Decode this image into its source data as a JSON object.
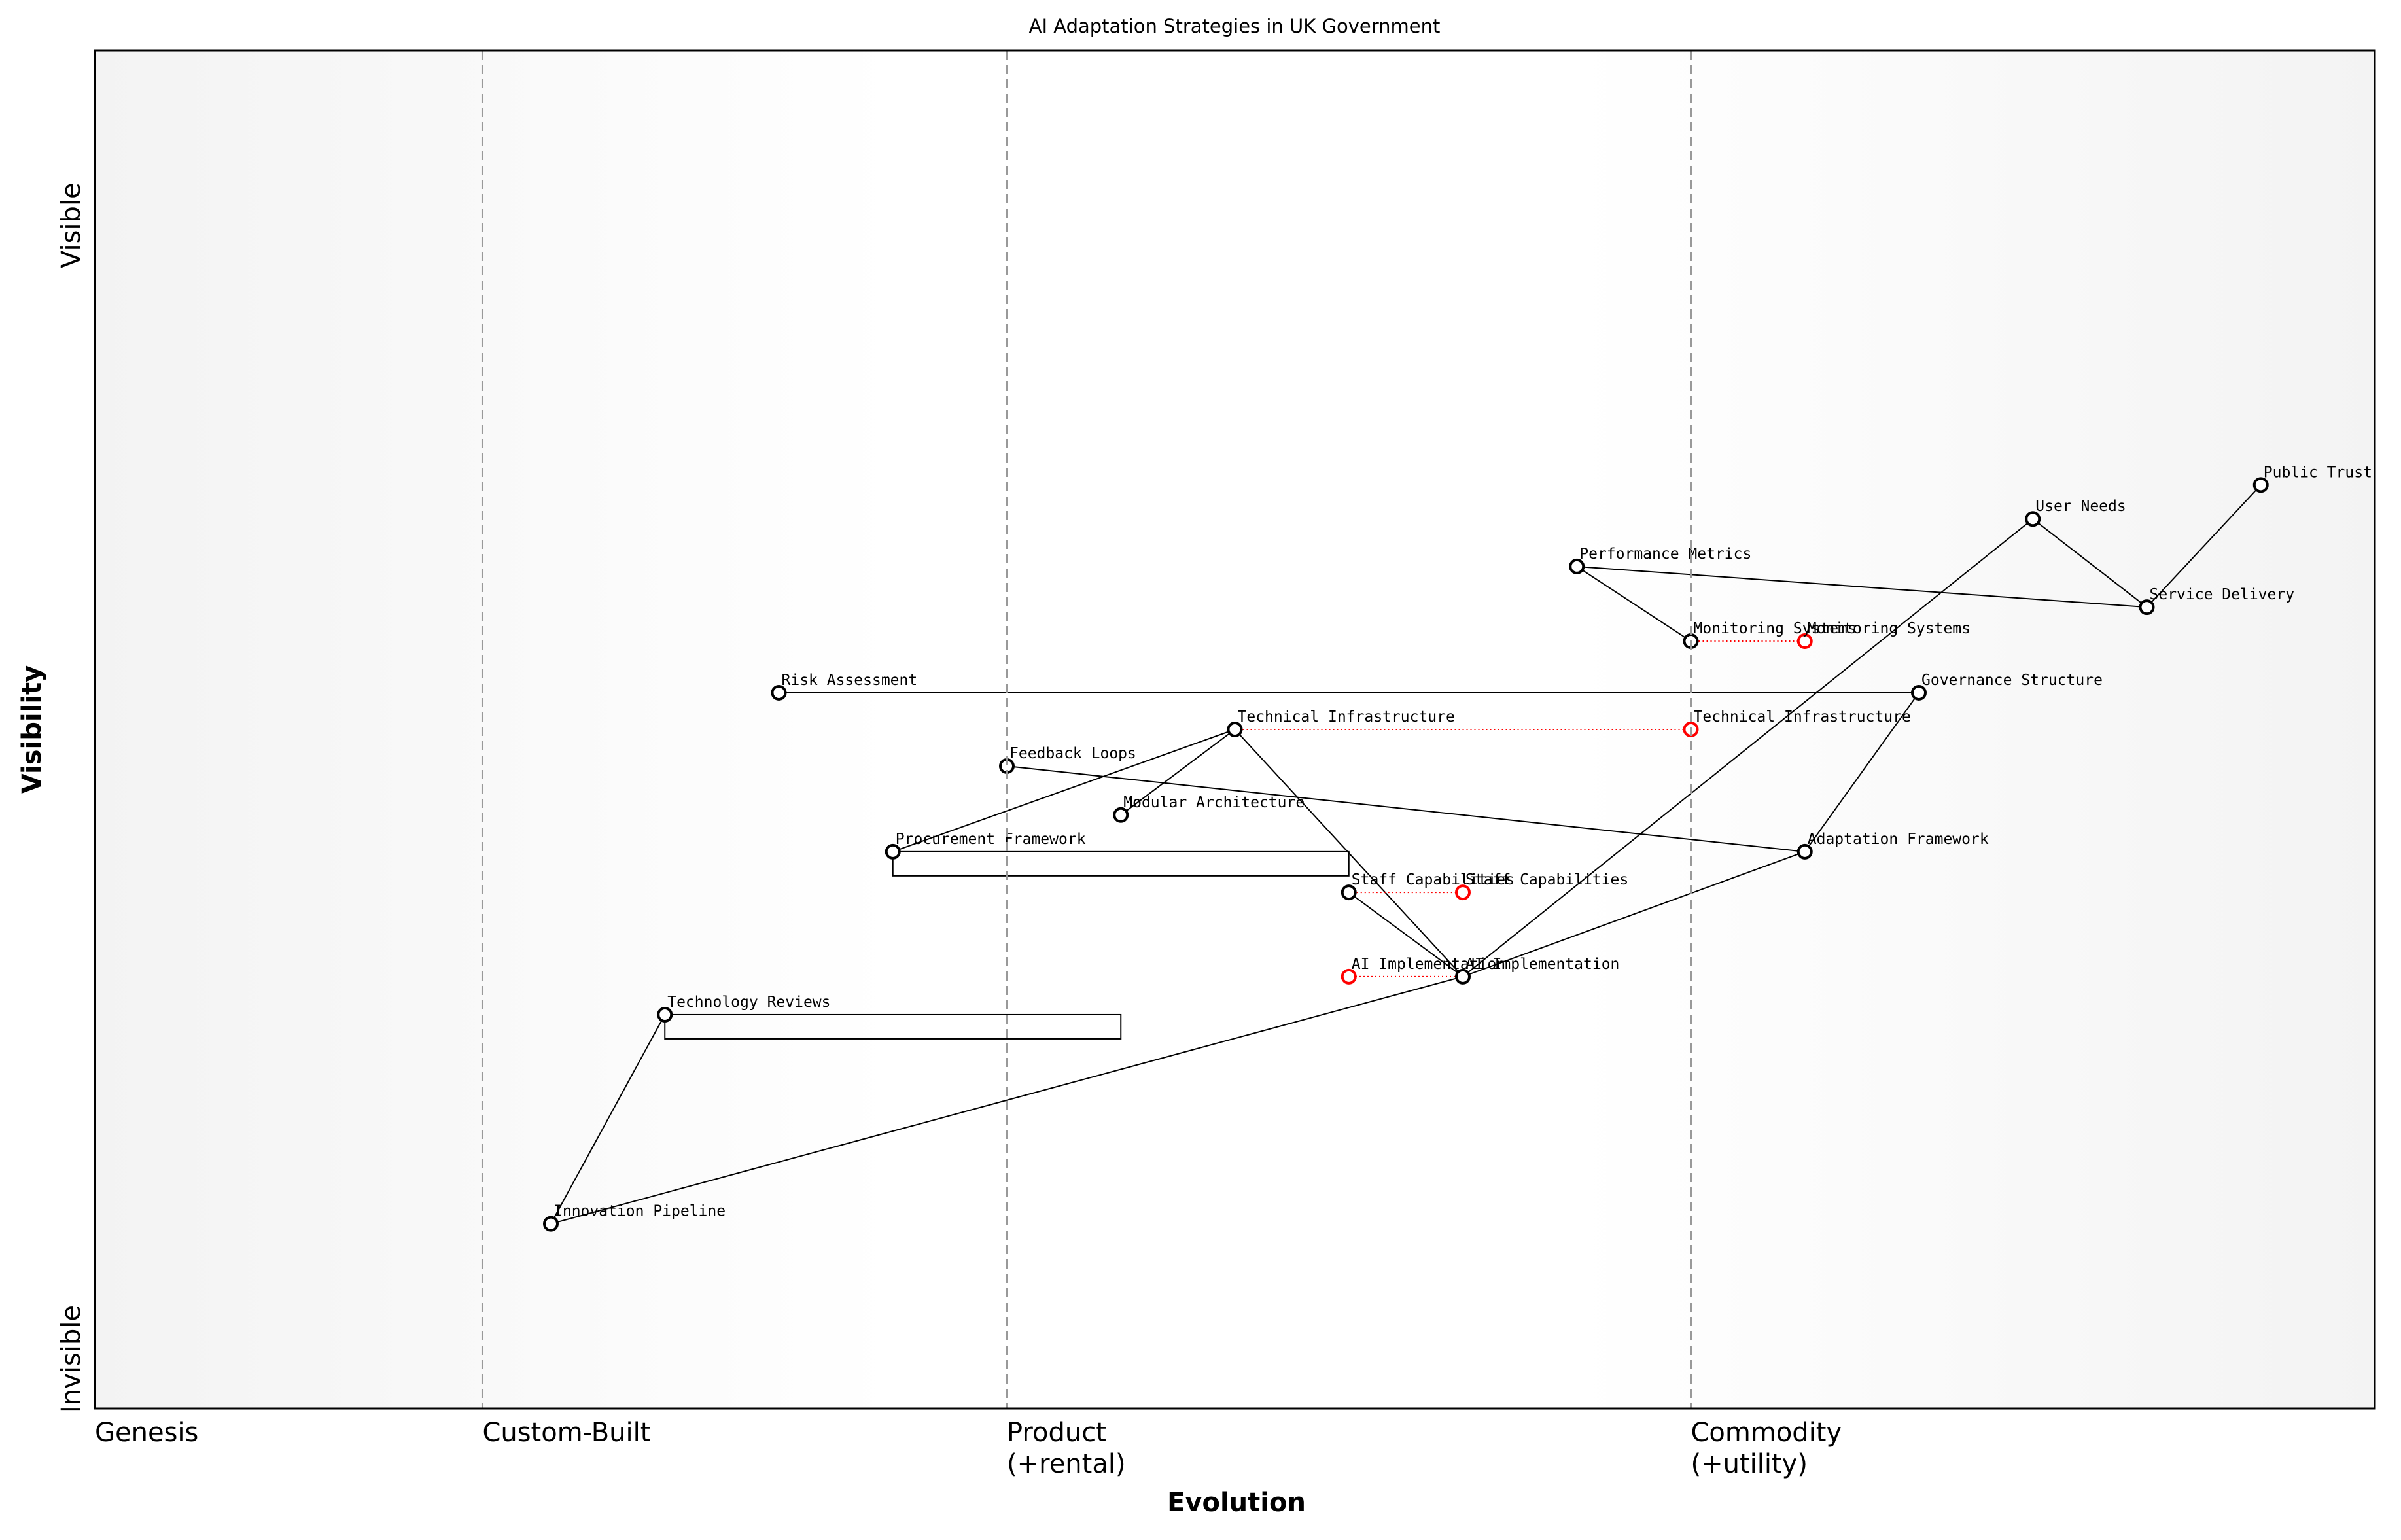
{
  "map": {
    "title": "AI Adaptation Strategies in UK Government",
    "x_axis_title": "Evolution",
    "y_axis_title": "Visibility",
    "y_top_label": "Visible",
    "y_bottom_label": "Invisible",
    "stages": [
      {
        "position": 0,
        "lines": [
          "Genesis"
        ]
      },
      {
        "position": 0.17,
        "lines": [
          "Custom-Built"
        ]
      },
      {
        "position": 0.4,
        "lines": [
          "Product",
          "(+rental)"
        ]
      },
      {
        "position": 0.7,
        "lines": [
          "Commodity",
          "(+utility)"
        ]
      }
    ],
    "components": [
      {
        "name": "Public Trust",
        "visibility": 0.68,
        "evolution": 0.95
      },
      {
        "name": "User Needs",
        "visibility": 0.655,
        "evolution": 0.85
      },
      {
        "name": "Service Delivery",
        "visibility": 0.59,
        "evolution": 0.9
      },
      {
        "name": "Performance Metrics",
        "visibility": 0.62,
        "evolution": 0.65
      },
      {
        "name": "Monitoring Systems",
        "visibility": 0.565,
        "evolution": 0.7
      },
      {
        "name": "Governance Structure",
        "visibility": 0.527,
        "evolution": 0.8
      },
      {
        "name": "Risk Assessment",
        "visibility": 0.527,
        "evolution": 0.3
      },
      {
        "name": "Technical Infrastructure",
        "visibility": 0.5,
        "evolution": 0.5
      },
      {
        "name": "Feedback Loops",
        "visibility": 0.473,
        "evolution": 0.4
      },
      {
        "name": "Modular Architecture",
        "visibility": 0.437,
        "evolution": 0.45
      },
      {
        "name": "Procurement Framework",
        "visibility": 0.41,
        "evolution": 0.35
      },
      {
        "name": "Adaptation Framework",
        "visibility": 0.41,
        "evolution": 0.75
      },
      {
        "name": "Staff Capabilities",
        "visibility": 0.38,
        "evolution": 0.55
      },
      {
        "name": "AI Implementation",
        "visibility": 0.318,
        "evolution": 0.6
      },
      {
        "name": "Technology Reviews",
        "visibility": 0.29,
        "evolution": 0.25
      },
      {
        "name": "Innovation Pipeline",
        "visibility": 0.136,
        "evolution": 0.2
      }
    ],
    "links": [
      [
        "Public Trust",
        "Service Delivery"
      ],
      [
        "User Needs",
        "Service Delivery"
      ],
      [
        "Service Delivery",
        "Performance Metrics"
      ],
      [
        "Performance Metrics",
        "Monitoring Systems"
      ],
      [
        "User Needs",
        "AI Implementation"
      ],
      [
        "Governance Structure",
        "Risk Assessment"
      ],
      [
        "Governance Structure",
        "Adaptation Framework"
      ],
      [
        "Adaptation Framework",
        "AI Implementation"
      ],
      [
        "Adaptation Framework",
        "Feedback Loops"
      ],
      [
        "Technical Infrastructure",
        "Procurement Framework"
      ],
      [
        "Technical Infrastructure",
        "Modular Architecture"
      ],
      [
        "Technical Infrastructure",
        "AI Implementation"
      ],
      [
        "Staff Capabilities",
        "AI Implementation"
      ],
      [
        "AI Implementation",
        "Innovation Pipeline"
      ],
      [
        "Innovation Pipeline",
        "Technology Reviews"
      ]
    ],
    "evolve": [
      {
        "name": "Monitoring Systems",
        "evolution": 0.75
      },
      {
        "name": "Technical Infrastructure",
        "evolution": 0.7
      },
      {
        "name": "Staff Capabilities",
        "evolution": 0.6
      },
      {
        "name": "AI Implementation",
        "evolution": 0.55
      }
    ],
    "pipelines": [
      {
        "name": "Procurement Framework",
        "start": 0.35,
        "end": 0.55
      },
      {
        "name": "Technology Reviews",
        "start": 0.25,
        "end": 0.45
      }
    ]
  }
}
